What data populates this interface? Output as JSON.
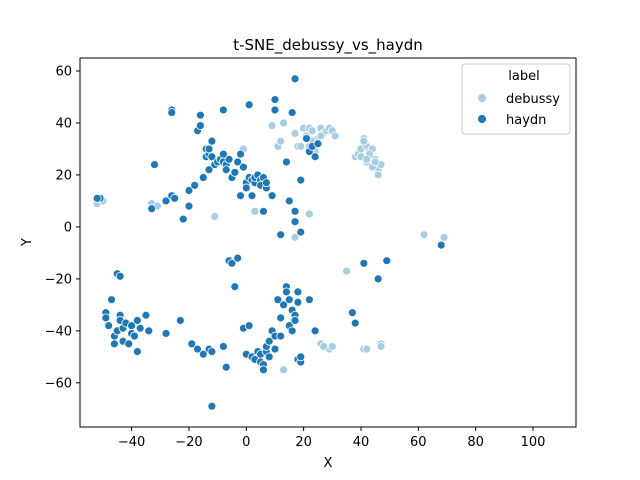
{
  "chart_data": {
    "type": "scatter",
    "title": "t-SNE_debussy_vs_haydn",
    "xlabel": "X",
    "ylabel": "Y",
    "xlim": [
      -58,
      115
    ],
    "ylim": [
      -77,
      65
    ],
    "xticks": [
      -40,
      -20,
      0,
      20,
      40,
      60,
      80,
      100
    ],
    "yticks": [
      -60,
      -40,
      -20,
      0,
      20,
      40,
      60
    ],
    "grid": false,
    "legend": {
      "title": "label",
      "placement": "top-right"
    },
    "series": [
      {
        "name": "debussy",
        "color": "#a6cee3",
        "points": [
          [
            -52,
            9
          ],
          [
            -50,
            10
          ],
          [
            -33,
            9
          ],
          [
            -31,
            8
          ],
          [
            -11,
            4
          ],
          [
            -1,
            30
          ],
          [
            3,
            6
          ],
          [
            9,
            39
          ],
          [
            11,
            31
          ],
          [
            12,
            33
          ],
          [
            13,
            40
          ],
          [
            17,
            36
          ],
          [
            18,
            31
          ],
          [
            19,
            31
          ],
          [
            20,
            38
          ],
          [
            21,
            35
          ],
          [
            22,
            38
          ],
          [
            23,
            37
          ],
          [
            24,
            32
          ],
          [
            25,
            34
          ],
          [
            26,
            38
          ],
          [
            27,
            36
          ],
          [
            28,
            37
          ],
          [
            29,
            38
          ],
          [
            30,
            37
          ],
          [
            31,
            35
          ],
          [
            24,
            29
          ],
          [
            22,
            31
          ],
          [
            23,
            33
          ],
          [
            26,
            35
          ],
          [
            38,
            27
          ],
          [
            39,
            28
          ],
          [
            40,
            30
          ],
          [
            41,
            34
          ],
          [
            42,
            31
          ],
          [
            43,
            29
          ],
          [
            44,
            26
          ],
          [
            45,
            24
          ],
          [
            46,
            22
          ],
          [
            46,
            20
          ],
          [
            42,
            25
          ],
          [
            44,
            30
          ],
          [
            41,
            33
          ],
          [
            43,
            28
          ],
          [
            45,
            26
          ],
          [
            47,
            24
          ],
          [
            40,
            27
          ],
          [
            44,
            23
          ],
          [
            42,
            26
          ],
          [
            45,
            25
          ],
          [
            17,
            -4
          ],
          [
            22,
            5
          ],
          [
            35,
            -17
          ],
          [
            13,
            -55
          ],
          [
            26,
            -45
          ],
          [
            29,
            -47
          ],
          [
            30,
            -46
          ],
          [
            41,
            -47
          ],
          [
            42,
            -47
          ],
          [
            47,
            -45
          ],
          [
            47,
            -46
          ],
          [
            62,
            -3
          ],
          [
            69,
            -4
          ],
          [
            27,
            -46
          ]
        ]
      },
      {
        "name": "haydn",
        "color": "#1f78b4",
        "points": [
          [
            -51,
            11
          ],
          [
            -32,
            24
          ],
          [
            -33,
            7
          ],
          [
            -28,
            10
          ],
          [
            -26,
            12
          ],
          [
            -25,
            11
          ],
          [
            -26,
            45
          ],
          [
            -26,
            44
          ],
          [
            -22,
            3
          ],
          [
            -20,
            8
          ],
          [
            -20,
            14
          ],
          [
            -18,
            16
          ],
          [
            -17,
            37
          ],
          [
            -16,
            39
          ],
          [
            -16,
            43
          ],
          [
            -15,
            19
          ],
          [
            -14,
            27
          ],
          [
            -14,
            30
          ],
          [
            -13,
            28
          ],
          [
            -13,
            22
          ],
          [
            -12,
            33
          ],
          [
            -12,
            27
          ],
          [
            -11,
            24
          ],
          [
            -10,
            25
          ],
          [
            -9,
            26
          ],
          [
            -8,
            25
          ],
          [
            -8,
            45
          ],
          [
            -7,
            24
          ],
          [
            -7,
            22
          ],
          [
            -6,
            26
          ],
          [
            -5,
            19
          ],
          [
            -4,
            21
          ],
          [
            -3,
            25
          ],
          [
            -2,
            28
          ],
          [
            -2,
            12
          ],
          [
            -1,
            23
          ],
          [
            0,
            17
          ],
          [
            0,
            15
          ],
          [
            1,
            19
          ],
          [
            1,
            47
          ],
          [
            2,
            18
          ],
          [
            2,
            12
          ],
          [
            3,
            17
          ],
          [
            3,
            19
          ],
          [
            4,
            20
          ],
          [
            5,
            18
          ],
          [
            5,
            16
          ],
          [
            6,
            19
          ],
          [
            6,
            6
          ],
          [
            7,
            15
          ],
          [
            7,
            17
          ],
          [
            9,
            12
          ],
          [
            10,
            49
          ],
          [
            10,
            45
          ],
          [
            12,
            -3
          ],
          [
            14,
            25
          ],
          [
            15,
            10
          ],
          [
            16,
            44
          ],
          [
            17,
            57
          ],
          [
            17,
            6
          ],
          [
            17,
            2
          ],
          [
            19,
            18
          ],
          [
            19,
            -2
          ],
          [
            21,
            34
          ],
          [
            22,
            29
          ],
          [
            23,
            31
          ],
          [
            24,
            27
          ],
          [
            25,
            32
          ],
          [
            -52,
            11
          ],
          [
            -49,
            -33
          ],
          [
            -49,
            -35
          ],
          [
            -48,
            -38
          ],
          [
            -47,
            -28
          ],
          [
            -46,
            -42
          ],
          [
            -46,
            -45
          ],
          [
            -45,
            -40
          ],
          [
            -45,
            -18
          ],
          [
            -44,
            -19
          ],
          [
            -44,
            -34
          ],
          [
            -44,
            -36
          ],
          [
            -43,
            -39
          ],
          [
            -43,
            -44
          ],
          [
            -42,
            -37
          ],
          [
            -41,
            -45
          ],
          [
            -40,
            -41
          ],
          [
            -40,
            -38
          ],
          [
            -39,
            -42
          ],
          [
            -38,
            -36
          ],
          [
            -38,
            -48
          ],
          [
            -37,
            -39
          ],
          [
            -35,
            -34
          ],
          [
            -34,
            -40
          ],
          [
            -28,
            -41
          ],
          [
            -23,
            -36
          ],
          [
            -19,
            -45
          ],
          [
            -17,
            -47
          ],
          [
            -15,
            -49
          ],
          [
            -13,
            -47
          ],
          [
            -12,
            -48
          ],
          [
            -12,
            -69
          ],
          [
            -8,
            -46
          ],
          [
            -7,
            -54
          ],
          [
            -6,
            -13
          ],
          [
            -5,
            -14
          ],
          [
            -4,
            -23
          ],
          [
            -3,
            -12
          ],
          [
            -1,
            -39
          ],
          [
            0,
            -49
          ],
          [
            1,
            -38
          ],
          [
            2,
            -50
          ],
          [
            3,
            -51
          ],
          [
            4,
            -48
          ],
          [
            5,
            -49
          ],
          [
            5,
            -52
          ],
          [
            6,
            -53
          ],
          [
            6,
            -55
          ],
          [
            7,
            -48
          ],
          [
            7,
            -46
          ],
          [
            8,
            -50
          ],
          [
            8,
            -44
          ],
          [
            9,
            -40
          ],
          [
            10,
            -42
          ],
          [
            10,
            -47
          ],
          [
            11,
            -28
          ],
          [
            12,
            -35
          ],
          [
            12,
            -42
          ],
          [
            13,
            -30
          ],
          [
            14,
            -23
          ],
          [
            14,
            -25
          ],
          [
            15,
            -28
          ],
          [
            15,
            -38
          ],
          [
            16,
            -32
          ],
          [
            16,
            -40
          ],
          [
            17,
            -34
          ],
          [
            17,
            -36
          ],
          [
            18,
            -29
          ],
          [
            18,
            -25
          ],
          [
            18,
            -51
          ],
          [
            19,
            -52
          ],
          [
            19,
            -50
          ],
          [
            22,
            -28
          ],
          [
            24,
            -40
          ],
          [
            37,
            -33
          ],
          [
            38,
            -37
          ],
          [
            41,
            -14
          ],
          [
            46,
            -20
          ],
          [
            49,
            -13
          ],
          [
            68,
            -7
          ],
          [
            -13,
            30
          ],
          [
            -8,
            28
          ]
        ]
      }
    ]
  }
}
